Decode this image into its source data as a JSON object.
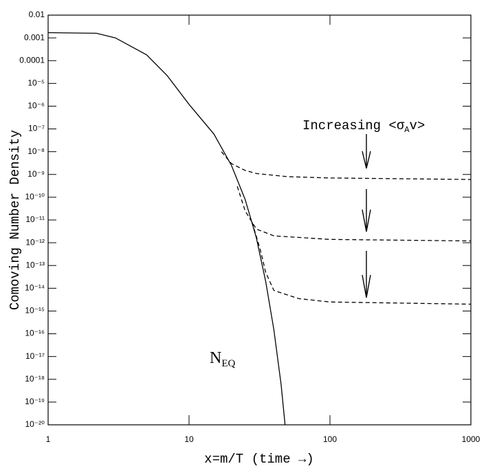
{
  "chart_data": {
    "type": "line",
    "xlabel": "x=m/T (time →)",
    "ylabel": "Comoving Number Density",
    "log_x": true,
    "log_y": true,
    "xlim": [
      1,
      1000
    ],
    "ylim": [
      1e-20,
      0.01
    ],
    "xticks": [
      1,
      10,
      100,
      1000
    ],
    "yticks": [
      0.01,
      0.001,
      0.0001,
      {
        "value": 1e-05,
        "label": "10⁻⁵"
      },
      {
        "value": 1e-06,
        "label": "10⁻⁶"
      },
      {
        "value": 1e-07,
        "label": "10⁻⁷"
      },
      {
        "value": 1e-08,
        "label": "10⁻⁸"
      },
      {
        "value": 1e-09,
        "label": "10⁻⁹"
      },
      {
        "value": 1e-10,
        "label": "10⁻¹⁰"
      },
      {
        "value": 1e-11,
        "label": "10⁻¹¹"
      },
      {
        "value": 1e-12,
        "label": "10⁻¹²"
      },
      {
        "value": 1e-13,
        "label": "10⁻¹³"
      },
      {
        "value": 1e-14,
        "label": "10⁻¹⁴"
      },
      {
        "value": 1e-15,
        "label": "10⁻¹⁵"
      },
      {
        "value": 1e-16,
        "label": "10⁻¹⁶"
      },
      {
        "value": 1e-17,
        "label": "10⁻¹⁷"
      },
      {
        "value": 1e-18,
        "label": "10⁻¹⁸"
      },
      {
        "value": 1e-19,
        "label": "10⁻¹⁹"
      },
      {
        "value": 1e-20,
        "label": "10⁻²⁰"
      }
    ],
    "series": [
      {
        "color": "#000000",
        "dash": false,
        "x": [
          1,
          2.2,
          3,
          5,
          7,
          10,
          15,
          20,
          25,
          30,
          35,
          40,
          45,
          48
        ],
        "values": [
          0.0017,
          0.0016,
          0.001,
          0.00018,
          2.2e-05,
          1.2e-06,
          6e-08,
          2.5e-09,
          8e-11,
          1.7e-12,
          2e-14,
          1.5e-16,
          6e-19,
          1e-20
        ]
      },
      {
        "color": "#000000",
        "dash": true,
        "x": [
          17,
          20,
          25,
          30,
          50,
          100,
          1000
        ],
        "values": [
          1e-08,
          3e-09,
          1.5e-09,
          1.1e-09,
          8e-10,
          7e-10,
          6e-10
        ]
      },
      {
        "color": "#000000",
        "dash": true,
        "x": [
          22,
          25,
          30,
          40,
          100,
          1000
        ],
        "values": [
          3e-10,
          2.5e-11,
          4e-12,
          2e-12,
          1.4e-12,
          1.2e-12
        ]
      },
      {
        "color": "#000000",
        "dash": true,
        "x": [
          28,
          32,
          35,
          40,
          60,
          100,
          1000
        ],
        "values": [
          8e-12,
          5e-13,
          5e-14,
          8e-15,
          3.5e-15,
          2.5e-15,
          2e-15
        ]
      }
    ],
    "annotations": [
      {
        "text": "Increasing <σ",
        "sub": "A",
        "after": "v>"
      },
      {
        "text": "N",
        "sub": "EQ"
      }
    ]
  }
}
